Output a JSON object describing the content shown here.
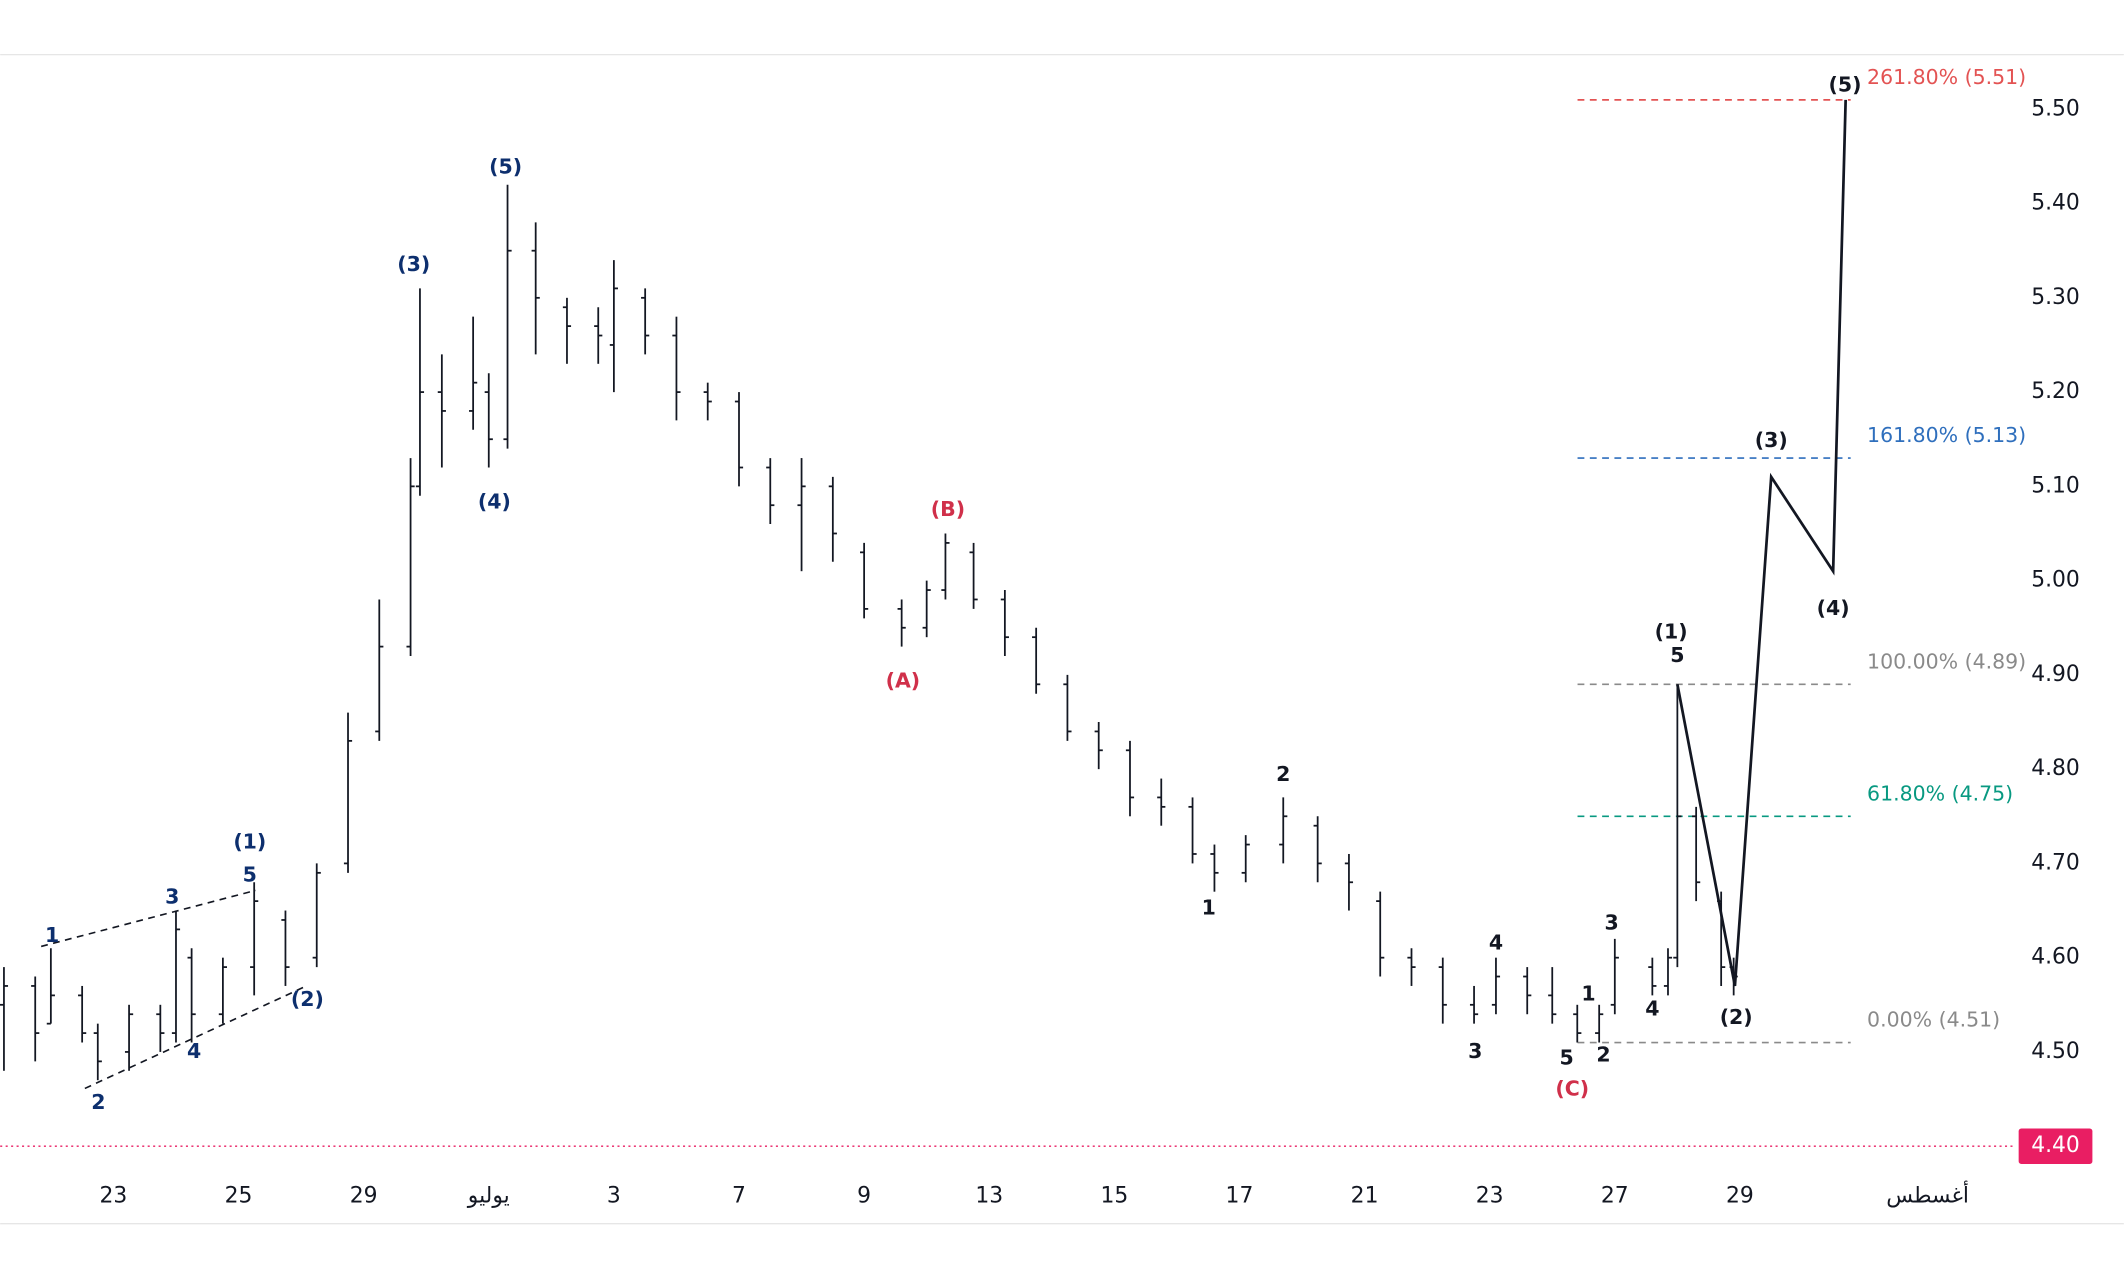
{
  "chart_data": {
    "type": "ohlc",
    "color": "#131722",
    "x": [
      -1.75,
      -1.25,
      -1.0,
      -0.5,
      -0.25,
      0.25,
      0.75,
      1.0,
      1.25,
      1.75,
      2.25,
      2.75,
      3.25,
      3.75,
      4.25,
      4.75,
      4.9,
      5.25,
      5.75,
      6.0,
      6.3,
      6.75,
      7.25,
      7.75,
      8.0,
      8.5,
      9.0,
      9.5,
      10.0,
      10.5,
      11.0,
      11.5,
      12.0,
      12.6,
      13.0,
      13.3,
      13.75,
      14.25,
      14.75,
      15.25,
      15.75,
      16.25,
      16.75,
      17.25,
      17.6,
      18.1,
      18.7,
      19.25,
      19.75,
      20.25,
      20.75,
      21.25,
      21.75,
      22.1,
      22.6,
      23.0,
      23.4,
      23.75,
      24.0,
      24.6,
      24.85,
      25.0,
      25.3,
      25.7,
      25.9
    ],
    "open": [
      4.55,
      4.57,
      4.53,
      4.56,
      4.52,
      4.5,
      4.54,
      4.52,
      4.6,
      4.54,
      4.59,
      4.64,
      4.6,
      4.7,
      4.84,
      4.93,
      5.1,
      5.2,
      5.18,
      5.2,
      5.15,
      5.35,
      5.29,
      5.27,
      5.25,
      5.3,
      5.26,
      5.2,
      5.19,
      5.12,
      5.08,
      5.1,
      5.03,
      4.97,
      4.95,
      4.99,
      5.03,
      4.98,
      4.94,
      4.89,
      4.84,
      4.82,
      4.77,
      4.76,
      4.71,
      4.69,
      4.72,
      4.74,
      4.7,
      4.66,
      4.6,
      4.59,
      4.55,
      4.55,
      4.58,
      4.56,
      4.54,
      4.52,
      4.55,
      4.59,
      4.57,
      4.6,
      4.75,
      4.66,
      4.59
    ],
    "high": [
      4.59,
      4.58,
      4.61,
      4.57,
      4.53,
      4.55,
      4.55,
      4.65,
      4.61,
      4.6,
      4.68,
      4.65,
      4.7,
      4.86,
      4.98,
      5.13,
      5.31,
      5.24,
      5.28,
      5.22,
      5.42,
      5.38,
      5.3,
      5.29,
      5.34,
      5.31,
      5.28,
      5.21,
      5.2,
      5.13,
      5.13,
      5.11,
      5.04,
      4.98,
      5.0,
      5.05,
      5.04,
      4.99,
      4.95,
      4.9,
      4.85,
      4.83,
      4.79,
      4.77,
      4.72,
      4.73,
      4.77,
      4.75,
      4.71,
      4.67,
      4.61,
      4.6,
      4.57,
      4.6,
      4.59,
      4.59,
      4.55,
      4.55,
      4.62,
      4.6,
      4.61,
      4.89,
      4.76,
      4.67,
      4.6
    ],
    "low": [
      4.48,
      4.49,
      4.53,
      4.51,
      4.47,
      4.48,
      4.5,
      4.51,
      4.51,
      4.53,
      4.56,
      4.57,
      4.59,
      4.69,
      4.83,
      4.92,
      5.09,
      5.12,
      5.16,
      5.12,
      5.14,
      5.24,
      5.23,
      5.23,
      5.2,
      5.24,
      5.17,
      5.17,
      5.1,
      5.06,
      5.01,
      5.02,
      4.96,
      4.93,
      4.94,
      4.98,
      4.97,
      4.92,
      4.88,
      4.83,
      4.8,
      4.75,
      4.74,
      4.7,
      4.67,
      4.68,
      4.7,
      4.68,
      4.65,
      4.58,
      4.57,
      4.53,
      4.53,
      4.54,
      4.54,
      4.53,
      4.51,
      4.51,
      4.54,
      4.56,
      4.56,
      4.59,
      4.66,
      4.57,
      4.56
    ],
    "close": [
      4.57,
      4.52,
      4.56,
      4.52,
      4.49,
      4.54,
      4.52,
      4.63,
      4.54,
      4.59,
      4.66,
      4.59,
      4.69,
      4.83,
      4.93,
      5.1,
      5.2,
      5.18,
      5.21,
      5.15,
      5.35,
      5.3,
      5.27,
      5.26,
      5.31,
      5.26,
      5.2,
      5.19,
      5.12,
      5.08,
      5.1,
      5.05,
      4.97,
      4.95,
      4.99,
      5.04,
      4.98,
      4.94,
      4.89,
      4.84,
      4.82,
      4.77,
      4.76,
      4.71,
      4.69,
      4.72,
      4.75,
      4.7,
      4.68,
      4.6,
      4.59,
      4.55,
      4.54,
      4.58,
      4.56,
      4.54,
      4.52,
      4.54,
      4.6,
      4.57,
      4.6,
      4.75,
      4.68,
      4.59,
      4.58
    ],
    "xlim": [
      -1.81,
      30.39
    ],
    "ylim": [
      4.37,
      5.558
    ],
    "xticks": [
      {
        "value": 0,
        "label": "23"
      },
      {
        "value": 2,
        "label": "25"
      },
      {
        "value": 4,
        "label": "29"
      },
      {
        "value": 6,
        "label": "يوليو"
      },
      {
        "value": 8,
        "label": "3"
      },
      {
        "value": 10,
        "label": "7"
      },
      {
        "value": 12,
        "label": "9"
      },
      {
        "value": 14,
        "label": "13"
      },
      {
        "value": 16,
        "label": "15"
      },
      {
        "value": 18,
        "label": "17"
      },
      {
        "value": 20,
        "label": "21"
      },
      {
        "value": 22,
        "label": "23"
      },
      {
        "value": 24,
        "label": "27"
      },
      {
        "value": 26,
        "label": "29"
      },
      {
        "value": 29,
        "label": "أغسطس"
      }
    ],
    "yticks": [
      {
        "value": 4.5,
        "label": "4.50"
      },
      {
        "value": 4.6,
        "label": "4.60"
      },
      {
        "value": 4.7,
        "label": "4.70"
      },
      {
        "value": 4.8,
        "label": "4.80"
      },
      {
        "value": 4.9,
        "label": "4.90"
      },
      {
        "value": 5.0,
        "label": "5.00"
      },
      {
        "value": 5.1,
        "label": "5.10"
      },
      {
        "value": 5.2,
        "label": "5.20"
      },
      {
        "value": 5.3,
        "label": "5.30"
      },
      {
        "value": 5.4,
        "label": "5.40"
      },
      {
        "value": 5.5,
        "label": "5.50"
      }
    ],
    "current_price": {
      "value": 4.4,
      "label": "4.40",
      "color": "#e91e63"
    },
    "fib_levels": [
      {
        "label": "261.80% (5.51)",
        "value": 5.51,
        "color": "#e35353"
      },
      {
        "label": "161.80% (5.13)",
        "value": 5.13,
        "color": "#2f6fbd"
      },
      {
        "label": "100.00% (4.89)",
        "value": 4.89,
        "color": "#8a8a8a"
      },
      {
        "label": "61.80% (4.75)",
        "value": 4.75,
        "color": "#089981"
      },
      {
        "label": "0.00% (4.51)",
        "value": 4.51,
        "color": "#8a8a8a"
      }
    ],
    "projection": {
      "x": [
        25.0,
        25.92,
        26.5,
        27.49,
        27.69
      ],
      "values": [
        4.89,
        4.57,
        5.11,
        5.01,
        5.51
      ],
      "color": "#131722"
    },
    "annotations": [
      {
        "text": "1",
        "x": -0.98,
        "y": 4.623,
        "color": "#0d2f6e"
      },
      {
        "text": "2",
        "x": -0.24,
        "y": 4.446,
        "color": "#0d2f6e"
      },
      {
        "text": "3",
        "x": 0.94,
        "y": 4.664,
        "color": "#0d2f6e"
      },
      {
        "text": "4",
        "x": 1.29,
        "y": 4.5,
        "color": "#0d2f6e"
      },
      {
        "text": "5",
        "x": 2.18,
        "y": 4.687,
        "color": "#0d2f6e"
      },
      {
        "text": "(1)",
        "x": 2.18,
        "y": 4.722,
        "color": "#0d2f6e"
      },
      {
        "text": "(2)",
        "x": 3.1,
        "y": 4.555,
        "color": "#0d2f6e"
      },
      {
        "text": "(3)",
        "x": 4.8,
        "y": 5.335,
        "color": "#0d2f6e"
      },
      {
        "text": "(4)",
        "x": 6.09,
        "y": 5.083,
        "color": "#0d2f6e"
      },
      {
        "text": "(5)",
        "x": 6.27,
        "y": 5.438,
        "color": "#0d2f6e"
      },
      {
        "text": "(A)",
        "x": 12.62,
        "y": 4.893,
        "color": "#d0304a"
      },
      {
        "text": "(B)",
        "x": 13.34,
        "y": 5.075,
        "color": "#d0304a"
      },
      {
        "text": "(C)",
        "x": 23.32,
        "y": 4.46,
        "color": "#d0304a"
      },
      {
        "text": "1",
        "x": 17.51,
        "y": 4.652,
        "color": "#131722"
      },
      {
        "text": "2",
        "x": 18.7,
        "y": 4.794,
        "color": "#131722"
      },
      {
        "text": "3",
        "x": 21.77,
        "y": 4.5,
        "color": "#131722"
      },
      {
        "text": "4",
        "x": 22.1,
        "y": 4.615,
        "color": "#131722"
      },
      {
        "text": "5",
        "x": 23.23,
        "y": 4.493,
        "color": "#131722"
      },
      {
        "text": "1",
        "x": 23.58,
        "y": 4.561,
        "color": "#131722"
      },
      {
        "text": "2",
        "x": 23.82,
        "y": 4.496,
        "color": "#131722"
      },
      {
        "text": "3",
        "x": 23.95,
        "y": 4.636,
        "color": "#131722"
      },
      {
        "text": "4",
        "x": 24.6,
        "y": 4.545,
        "color": "#131722"
      },
      {
        "text": "(1)",
        "x": 24.9,
        "y": 4.945,
        "color": "#131722"
      },
      {
        "text": "5",
        "x": 25.0,
        "y": 4.92,
        "color": "#131722"
      },
      {
        "text": "(2)",
        "x": 25.94,
        "y": 4.536,
        "color": "#131722"
      },
      {
        "text": "(3)",
        "x": 26.5,
        "y": 5.148,
        "color": "#131722"
      },
      {
        "text": "(4)",
        "x": 27.49,
        "y": 4.97,
        "color": "#131722"
      },
      {
        "text": "(5)",
        "x": 27.68,
        "y": 5.525,
        "color": "#131722"
      }
    ]
  }
}
